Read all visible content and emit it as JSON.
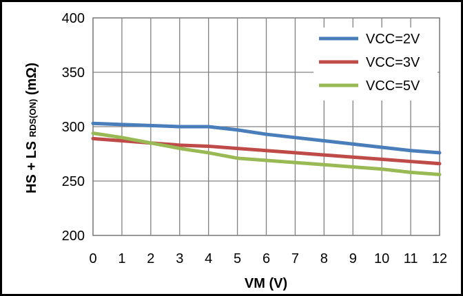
{
  "chart_data": {
    "type": "line",
    "xlabel": "VM (V)",
    "ylabel_main": "HS + LS ",
    "ylabel_sub": "RDS(ON)",
    "ylabel_unit": " (mΩ)",
    "x": [
      0,
      1,
      2,
      3,
      4,
      5,
      6,
      7,
      8,
      9,
      10,
      11,
      12
    ],
    "xlim": [
      0,
      12
    ],
    "ylim": [
      200,
      400
    ],
    "yticks": [
      200,
      250,
      300,
      350,
      400
    ],
    "grid": true,
    "legend_position": "top-right",
    "series": [
      {
        "name": "VCC=2V",
        "color": "#4a7ebb",
        "values": [
          303,
          302,
          301,
          300,
          300,
          297,
          293,
          290,
          287,
          284,
          281,
          278,
          276
        ]
      },
      {
        "name": "VCC=3V",
        "color": "#be4b48",
        "values": [
          289,
          287,
          285,
          283,
          282,
          280,
          278,
          276,
          274,
          272,
          270,
          268,
          266
        ]
      },
      {
        "name": "VCC=5V",
        "color": "#98b954",
        "values": [
          294,
          290,
          285,
          280,
          276,
          271,
          269,
          267,
          265,
          263,
          261,
          258,
          256
        ]
      }
    ]
  }
}
